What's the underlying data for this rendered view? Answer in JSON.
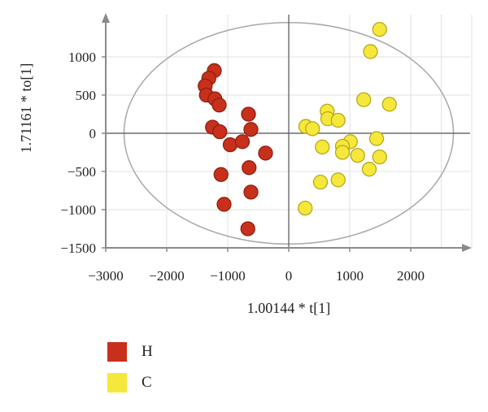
{
  "chart_data": {
    "type": "scatter",
    "xlabel": "1.00144 * t[1]",
    "ylabel": "1.71161 * to[1]",
    "xlim": [
      -3000,
      3000
    ],
    "ylim": [
      -1500,
      1500
    ],
    "xticks": [
      -3000,
      -2000,
      -1000,
      0,
      1000,
      2000
    ],
    "yticks": [
      -1500,
      -1000,
      -500,
      0,
      500,
      1000
    ],
    "xtick_labels": [
      "−3000",
      "−2000",
      "−1000",
      "0",
      "1000",
      "2000"
    ],
    "ytick_labels": [
      "−1500",
      "−1000",
      "−500",
      "0",
      "500",
      "1000"
    ],
    "grid": true,
    "hotelling_ellipse": {
      "cx": 0,
      "cy": 0,
      "rx": 2700,
      "ry": 1450
    },
    "legend_position": "bottom-left",
    "series": [
      {
        "name": "H",
        "color": "#c8301c",
        "points": [
          [
            -1220,
            820
          ],
          [
            -1310,
            720
          ],
          [
            -1370,
            620
          ],
          [
            -1350,
            500
          ],
          [
            -1210,
            450
          ],
          [
            -1140,
            370
          ],
          [
            -660,
            250
          ],
          [
            -1250,
            80
          ],
          [
            -1130,
            20
          ],
          [
            -620,
            50
          ],
          [
            -960,
            -150
          ],
          [
            -760,
            -110
          ],
          [
            -380,
            -260
          ],
          [
            -650,
            -450
          ],
          [
            -1110,
            -540
          ],
          [
            -620,
            -770
          ],
          [
            -1060,
            -930
          ],
          [
            -670,
            -1250
          ]
        ]
      },
      {
        "name": "C",
        "color": "#f6e83a",
        "points": [
          [
            1490,
            1360
          ],
          [
            1340,
            1070
          ],
          [
            1230,
            440
          ],
          [
            1650,
            380
          ],
          [
            630,
            290
          ],
          [
            640,
            190
          ],
          [
            810,
            170
          ],
          [
            280,
            90
          ],
          [
            390,
            60
          ],
          [
            1440,
            -70
          ],
          [
            1010,
            -110
          ],
          [
            880,
            -170
          ],
          [
            550,
            -180
          ],
          [
            880,
            -250
          ],
          [
            1130,
            -290
          ],
          [
            1490,
            -310
          ],
          [
            1320,
            -470
          ],
          [
            810,
            -610
          ],
          [
            520,
            -640
          ],
          [
            270,
            -980
          ]
        ]
      }
    ]
  },
  "legend": [
    {
      "label": "H",
      "color": "#c8301c"
    },
    {
      "label": "C",
      "color": "#f6e83a"
    }
  ]
}
